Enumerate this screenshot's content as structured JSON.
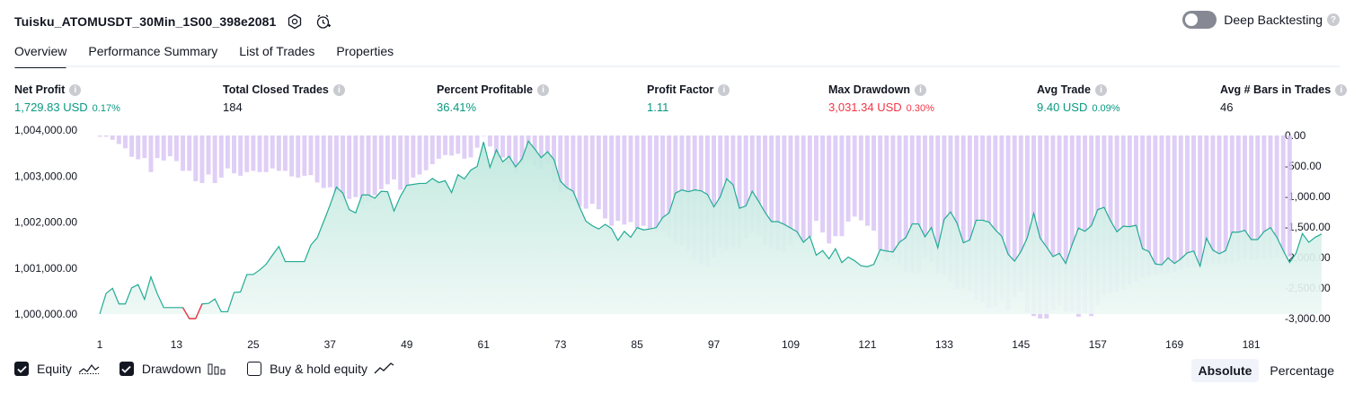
{
  "header": {
    "strategy_name": "Tuisku_ATOMUSDT_30Min_1S00_398e2081",
    "icons": [
      "settings-icon",
      "alert-clock-icon"
    ],
    "deep_backtesting_label": "Deep Backtesting",
    "deep_backtesting_on": false
  },
  "tabs": [
    {
      "label": "Overview",
      "active": true
    },
    {
      "label": "Performance Summary",
      "active": false
    },
    {
      "label": "List of Trades",
      "active": false
    },
    {
      "label": "Properties",
      "active": false
    }
  ],
  "metrics": [
    {
      "label": "Net Profit",
      "value": "1,729.83 USD",
      "pct": "0.17%",
      "tone": "green"
    },
    {
      "label": "Total Closed Trades",
      "value": "184",
      "pct": "",
      "tone": "dark"
    },
    {
      "label": "Percent Profitable",
      "value": "36.41%",
      "pct": "",
      "tone": "green"
    },
    {
      "label": "Profit Factor",
      "value": "1.11",
      "pct": "",
      "tone": "green"
    },
    {
      "label": "Max Drawdown",
      "value": "3,031.34 USD",
      "pct": "0.30%",
      "tone": "red"
    },
    {
      "label": "Avg Trade",
      "value": "9.40 USD",
      "pct": "0.09%",
      "tone": "green"
    },
    {
      "label": "Avg # Bars in Trades",
      "value": "46",
      "pct": "",
      "tone": "dark"
    }
  ],
  "colors": {
    "equity_line": "#22ab94",
    "equity_fill": "#c7ebe3",
    "below_initial": "#f23645",
    "drawdown_bar": "#d9c6f5",
    "positive": "#089981",
    "negative": "#f23645"
  },
  "chart_data": {
    "type": "area",
    "x_tick_labels": [
      "1",
      "13",
      "25",
      "37",
      "49",
      "61",
      "73",
      "85",
      "97",
      "109",
      "121",
      "133",
      "145",
      "157",
      "169",
      "181"
    ],
    "x_range": [
      1,
      184
    ],
    "left_axis": {
      "labels": [
        "1,004,000.00",
        "1,003,000.00",
        "1,002,000.00",
        "1,001,000.00",
        "1,000,000.00"
      ],
      "range": [
        1000000,
        1004000
      ]
    },
    "right_axis": {
      "labels": [
        "0.00",
        "-500.00",
        "-1,000.00",
        "-1,500.00",
        "-2,000.00",
        "-2,500.00",
        "-3,000.00"
      ],
      "range": [
        -3000,
        0
      ]
    },
    "series": [
      {
        "name": "Equity",
        "type": "area",
        "values": [
          1000000,
          1000450,
          1000560,
          1000220,
          1000220,
          1000570,
          1000640,
          1000320,
          1000810,
          1000440,
          1000140,
          1000140,
          1000140,
          1000140,
          999900,
          999900,
          1000220,
          1000230,
          1000330,
          1000050,
          1000050,
          1000470,
          1000480,
          1000860,
          1000860,
          1000960,
          1001080,
          1001280,
          1001470,
          1001140,
          1001140,
          1001140,
          1001140,
          1001500,
          1001660,
          1002010,
          1002370,
          1002760,
          1002630,
          1002270,
          1002200,
          1002590,
          1002590,
          1002520,
          1002670,
          1002660,
          1002240,
          1002560,
          1002800,
          1002820,
          1002840,
          1002840,
          1002950,
          1002860,
          1002900,
          1002640,
          1003030,
          1002940,
          1003130,
          1003210,
          1003740,
          1003190,
          1003570,
          1003310,
          1003430,
          1003200,
          1003370,
          1003760,
          1003590,
          1003400,
          1003530,
          1003360,
          1002890,
          1002750,
          1002670,
          1002330,
          1002020,
          1001920,
          1001850,
          1001950,
          1001860,
          1001600,
          1001800,
          1001670,
          1001880,
          1001830,
          1001850,
          1001880,
          1002100,
          1002200,
          1002630,
          1002700,
          1002660,
          1002700,
          1002680,
          1002600,
          1002330,
          1002550,
          1002940,
          1002810,
          1002300,
          1002350,
          1002670,
          1002450,
          1002210,
          1002010,
          1002010,
          1001950,
          1001870,
          1001790,
          1001560,
          1001690,
          1001280,
          1001380,
          1001200,
          1001420,
          1001120,
          1001240,
          1001160,
          1001050,
          1001030,
          1001080,
          1001400,
          1001370,
          1001350,
          1001560,
          1001660,
          1001960,
          1001960,
          1001680,
          1001880,
          1001440,
          1002060,
          1002220,
          1001980,
          1001550,
          1001610,
          1002040,
          1002040,
          1002000,
          1001830,
          1001690,
          1001300,
          1001150,
          1001360,
          1001660,
          1002190,
          1001650,
          1001460,
          1001250,
          1001320,
          1001100,
          1001510,
          1001870,
          1001800,
          1001920,
          1002270,
          1002320,
          1002030,
          1001790,
          1001910,
          1001900,
          1001930,
          1001420,
          1001360,
          1001090,
          1001070,
          1001220,
          1001100,
          1001200,
          1001330,
          1001370,
          1001040,
          1001650,
          1001390,
          1001310,
          1001380,
          1001780,
          1001780,
          1001820,
          1001620,
          1001620,
          1001790,
          1001880,
          1001670,
          1001380,
          1001120,
          1001320,
          1001750,
          1001560,
          1001670,
          1001740
        ]
      },
      {
        "name": "Drawdown",
        "type": "bar",
        "values": [
          -20,
          -20,
          -70,
          -140,
          -210,
          -350,
          -390,
          -370,
          -600,
          -370,
          -410,
          -340,
          -420,
          -580,
          -580,
          -750,
          -780,
          -640,
          -780,
          -690,
          -540,
          -620,
          -660,
          -600,
          -580,
          -600,
          -600,
          -540,
          -580,
          -580,
          -670,
          -690,
          -660,
          -650,
          -770,
          -860,
          -850,
          -960,
          -1080,
          -1040,
          -1010,
          -1130,
          -1080,
          -980,
          -880,
          -800,
          -720,
          -890,
          -850,
          -690,
          -640,
          -570,
          -470,
          -380,
          -320,
          -330,
          -300,
          -380,
          -360,
          -200,
          0,
          -180,
          -370,
          -360,
          -480,
          -620,
          -480,
          -410,
          -500,
          -560,
          -470,
          -770,
          -930,
          -900,
          -1070,
          -1160,
          -1200,
          -1120,
          -1210,
          -1360,
          -1480,
          -1400,
          -1460,
          -1420,
          -1520,
          -1480,
          -1530,
          -1590,
          -1600,
          -1660,
          -1780,
          -1800,
          -1890,
          -2040,
          -2120,
          -2160,
          -2000,
          -1840,
          -1870,
          -1830,
          -1860,
          -1690,
          -1600,
          -1630,
          -1810,
          -1860,
          -1880,
          -1920,
          -1800,
          -1700,
          -1750,
          -1660,
          -1400,
          -1590,
          -1770,
          -1650,
          -1650,
          -1410,
          -1330,
          -1390,
          -1480,
          -1560,
          -1880,
          -2060,
          -2010,
          -2120,
          -2240,
          -2250,
          -2270,
          -2010,
          -2080,
          -2250,
          -2280,
          -2410,
          -2520,
          -2500,
          -2550,
          -2700,
          -2740,
          -2830,
          -2800,
          -2690,
          -2860,
          -2650,
          -2560,
          -2900,
          -2960,
          -3000,
          -3000,
          -2860,
          -2790,
          -2880,
          -2880,
          -2970,
          -2900,
          -2960,
          -2780,
          -2610,
          -2580,
          -2550,
          -2520,
          -2440,
          -2390,
          -2330,
          -2300,
          -2290,
          -2270,
          -2260,
          -2230,
          -2190,
          -2160,
          -2150,
          -2130,
          -2120,
          -2120,
          -2110,
          -2100,
          -2080,
          -2060,
          -2030,
          -2040,
          -2040,
          -2020,
          -2010,
          -2000,
          -2000,
          -1990
        ]
      }
    ]
  },
  "legend": [
    {
      "label": "Equity",
      "checked": true,
      "icon": "equity-line-icon"
    },
    {
      "label": "Drawdown",
      "checked": true,
      "icon": "drawdown-bars-icon"
    },
    {
      "label": "Buy & hold equity",
      "checked": false,
      "icon": "buy-hold-line-icon"
    }
  ],
  "view_modes": [
    {
      "label": "Absolute",
      "active": true
    },
    {
      "label": "Percentage",
      "active": false
    }
  ]
}
